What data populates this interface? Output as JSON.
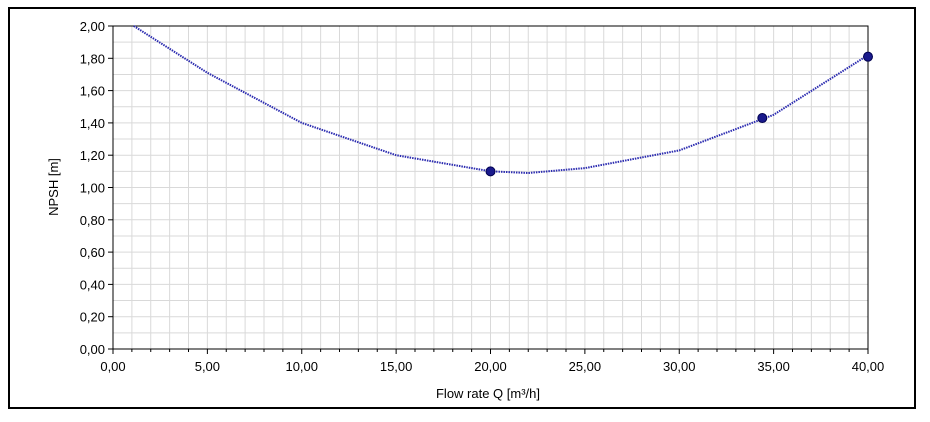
{
  "chart_data": {
    "type": "scatter",
    "title": "",
    "xlabel": "Flow rate Q [m³/h]",
    "ylabel": "NPSH [m]",
    "xlim": [
      0,
      40
    ],
    "ylim": [
      0,
      2
    ],
    "x_ticks": [
      "0,00",
      "5,00",
      "10,00",
      "15,00",
      "20,00",
      "25,00",
      "30,00",
      "35,00",
      "40,00"
    ],
    "y_ticks": [
      "0,00",
      "0,20",
      "0,40",
      "0,60",
      "0,80",
      "1,00",
      "1,20",
      "1,40",
      "1,60",
      "1,80",
      "2,00"
    ],
    "grid": true,
    "legend": "none",
    "series": [
      {
        "points": [
          {
            "x": 20.0,
            "y": 1.1
          },
          {
            "x": 34.4,
            "y": 1.43
          },
          {
            "x": 40.0,
            "y": 1.81
          }
        ],
        "trendline": {
          "type": "polynomial-2",
          "points": [
            {
              "x": 1.1,
              "y": 2.0
            },
            {
              "x": 5.0,
              "y": 1.71
            },
            {
              "x": 10.0,
              "y": 1.4
            },
            {
              "x": 15.0,
              "y": 1.2
            },
            {
              "x": 20.0,
              "y": 1.1
            },
            {
              "x": 22.0,
              "y": 1.09
            },
            {
              "x": 25.0,
              "y": 1.12
            },
            {
              "x": 30.0,
              "y": 1.23
            },
            {
              "x": 35.0,
              "y": 1.45
            },
            {
              "x": 40.0,
              "y": 1.82
            }
          ]
        }
      }
    ],
    "colors": {
      "marker": "#1a1a8c",
      "line": "#2b2bb0",
      "grid": "#d9d9d9",
      "axis": "#000000"
    }
  }
}
